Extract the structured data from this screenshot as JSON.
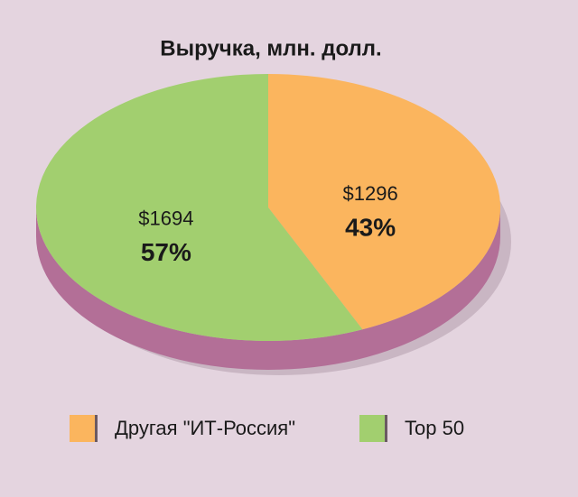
{
  "chart_data": {
    "type": "pie",
    "title": "Выручка, млн. долл.",
    "categories": [
      "Другая \"ИТ-Россия\"",
      "Top 50"
    ],
    "values": [
      1296,
      1694
    ],
    "value_labels": [
      "$1296",
      "$1694"
    ],
    "share_labels": [
      "43%",
      "57%"
    ],
    "colors": [
      "#fbb55e",
      "#a2cf6f"
    ],
    "side_color": "#b36f97",
    "legend": "bottom"
  }
}
